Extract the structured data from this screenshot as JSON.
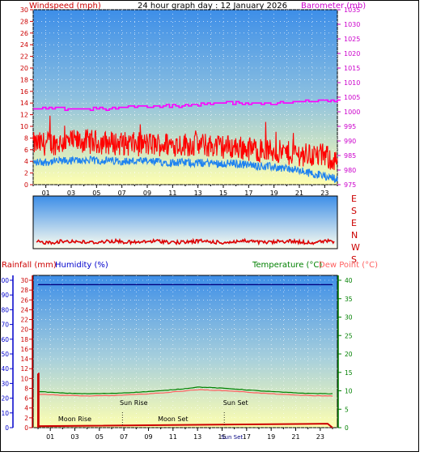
{
  "header": {
    "title": "24 hour graph day : 12 January 2026",
    "left_label": "Windspeed (mph)",
    "right_label": "Barometer (mb)"
  },
  "bottom_header": {
    "rainfall_label": "Rainfall (mm)",
    "humidity_label": "Humidity (%)",
    "temperature_label": "Temperature (°C)",
    "dewpoint_label": "Dew Point (°C)"
  },
  "direction_letters": [
    "E",
    "S",
    "E",
    "N",
    "W",
    "S"
  ],
  "chart_data": [
    {
      "type": "line",
      "name": "wind-barometer",
      "x_tick_labels": [
        "01",
        "03",
        "05",
        "07",
        "09",
        "11",
        "13",
        "15",
        "17",
        "19",
        "21",
        "23"
      ],
      "y_left_ticks": [
        0,
        2,
        4,
        6,
        8,
        10,
        12,
        14,
        16,
        18,
        20,
        22,
        24,
        26,
        28,
        30
      ],
      "y_right_ticks": [
        975,
        980,
        985,
        990,
        995,
        1000,
        1005,
        1010,
        1015,
        1020,
        1025,
        1030,
        1035
      ],
      "ylim_left": [
        0,
        30
      ],
      "ylim_right": [
        975,
        1035
      ],
      "gust_profile": {
        "x": [
          0,
          4,
          8,
          12,
          16,
          20,
          23,
          24
        ],
        "y": [
          6.5,
          7,
          6.5,
          6.5,
          6.0,
          5.0,
          4.5,
          3.5
        ]
      },
      "average_profile": {
        "x": [
          0,
          4,
          8,
          12,
          16,
          20,
          23,
          24
        ],
        "y": [
          3.8,
          4.2,
          4.0,
          3.8,
          3.6,
          2.8,
          1.5,
          1.0
        ]
      },
      "barometer": {
        "x": [
          0,
          2,
          4,
          6,
          8,
          10,
          12,
          14,
          16,
          18,
          20,
          22,
          24
        ],
        "y": [
          1001,
          1001,
          1001,
          1001,
          1002,
          1002,
          1002,
          1003,
          1003,
          1003,
          1003,
          1004,
          1004
        ]
      }
    },
    {
      "type": "scatter",
      "name": "wind-direction",
      "direction_band_value": 0.87
    },
    {
      "type": "line",
      "name": "temperature-humidity-rain",
      "x_tick_labels": [
        "01",
        "03",
        "05",
        "07",
        "09",
        "11",
        "13",
        "15",
        "17",
        "19",
        "21",
        "23"
      ],
      "y_rain_ticks": [
        0,
        2,
        4,
        6,
        8,
        10,
        12,
        14,
        16,
        18,
        20,
        22,
        24,
        26,
        28,
        30
      ],
      "y_humidity_ticks": [
        0,
        10,
        20,
        30,
        40,
        50,
        60,
        70,
        80,
        90,
        100
      ],
      "y_temp_ticks": [
        0,
        5,
        10,
        15,
        20,
        25,
        30,
        35,
        40
      ],
      "ylim_rain": [
        0,
        30
      ],
      "ylim_humidity": [
        0,
        100
      ],
      "ylim_temp": [
        0,
        40
      ],
      "humidity": {
        "x": [
          0,
          24
        ],
        "y": [
          97,
          97
        ]
      },
      "temperature": {
        "x": [
          0,
          2,
          4,
          6,
          8,
          10,
          12,
          13,
          14,
          16,
          18,
          20,
          22,
          24
        ],
        "y": [
          9.8,
          9.4,
          9.2,
          9.3,
          9.6,
          10.0,
          10.6,
          11.0,
          10.9,
          10.5,
          10.0,
          9.6,
          9.3,
          9.2
        ]
      },
      "dewpoint": {
        "x": [
          0,
          2,
          4,
          6,
          8,
          10,
          12,
          13,
          14,
          16,
          18,
          20,
          22,
          24
        ],
        "y": [
          9.1,
          8.8,
          8.6,
          8.7,
          9.0,
          9.4,
          10.0,
          10.3,
          10.2,
          9.9,
          9.4,
          9.0,
          8.7,
          8.6
        ]
      },
      "rain_x": [
        0,
        0.05,
        23.6,
        24
      ],
      "rain_y": [
        11,
        0.3,
        0.8,
        0
      ],
      "events": [
        {
          "label": "Moon Rise",
          "x": 3.0,
          "row": "low"
        },
        {
          "label": "Sun Rise",
          "x": 7.8,
          "row": "high"
        },
        {
          "label": "Moon Set",
          "x": 11.0,
          "row": "low"
        },
        {
          "label": "Sun Set",
          "x": 16.1,
          "row": "high"
        },
        {
          "label": "Sun Set",
          "x": 15.8,
          "row": "axis"
        }
      ]
    }
  ],
  "colors": {
    "wind_gust": "#ff0000",
    "wind_avg": "#1e82f0",
    "barometer": "#ff00ff",
    "temperature": "#008000",
    "dewpoint": "#ff6060",
    "humidity": "#000080",
    "rain": "#cc0000",
    "left_axis": "#cc0000",
    "humidity_axis": "#0000cc",
    "temp_axis": "#008000",
    "sky_top": "#3a8fe8",
    "sky_bottom": "#ffffb4"
  }
}
